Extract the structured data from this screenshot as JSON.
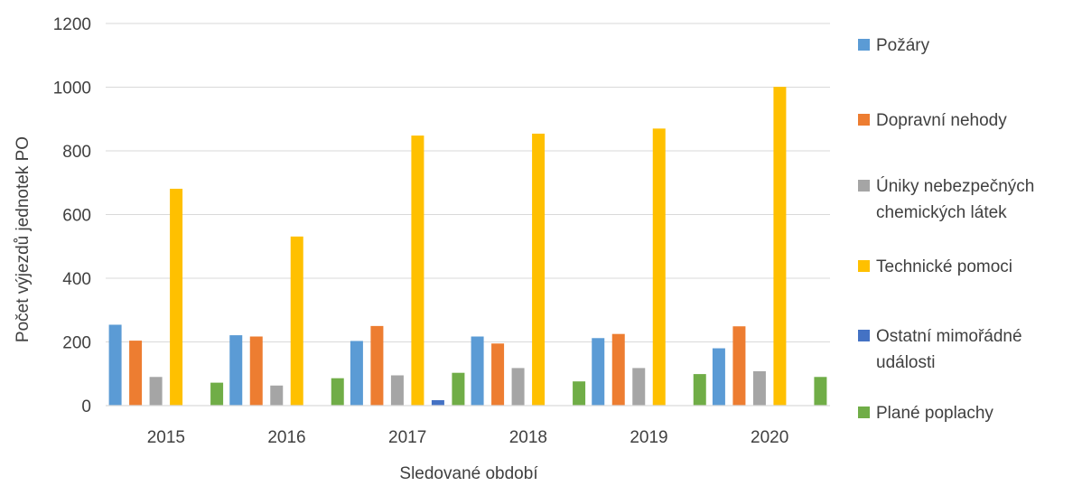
{
  "chart_data": {
    "type": "bar",
    "title": "",
    "xlabel": "Sledované období",
    "ylabel": "Počet výjezdů jednotek PO",
    "categories": [
      "2015",
      "2016",
      "2017",
      "2018",
      "2019",
      "2020"
    ],
    "ylim": [
      0,
      1200
    ],
    "yticks": [
      "0",
      "200",
      "400",
      "600",
      "800",
      "1000",
      "1200"
    ],
    "grid": true,
    "legend_position": "right",
    "series": [
      {
        "name": "Požáry",
        "color": "#5b9bd5",
        "values": [
          254,
          221,
          203,
          217,
          212,
          180
        ]
      },
      {
        "name": "Dopravní nehody",
        "color": "#ed7d31",
        "values": [
          204,
          217,
          250,
          195,
          225,
          249
        ]
      },
      {
        "name": "Úniky nebezpečných chemických látek",
        "color": "#a5a5a5",
        "values": [
          90,
          63,
          95,
          118,
          118,
          108
        ]
      },
      {
        "name": "Technické pomoci",
        "color": "#ffc000",
        "values": [
          681,
          531,
          848,
          854,
          870,
          1001
        ]
      },
      {
        "name": "Ostatní mimořádné události",
        "color": "#4472c4",
        "values": [
          0,
          0,
          17,
          0,
          0,
          0
        ]
      },
      {
        "name": "Plané poplachy",
        "color": "#70ad47",
        "values": [
          72,
          86,
          103,
          76,
          99,
          90
        ]
      }
    ]
  }
}
